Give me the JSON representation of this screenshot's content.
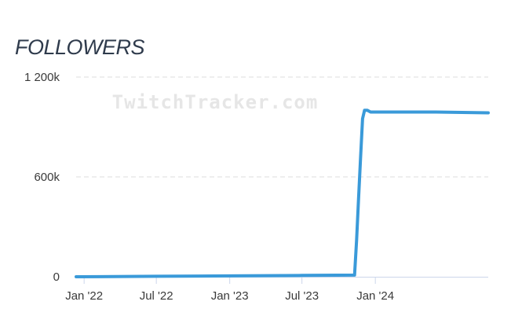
{
  "title": "FOLLOWERS",
  "watermark": "TwitchTracker.com",
  "colors": {
    "line": "#3a9ad9",
    "grid": "#dcdcdc",
    "axis": "#ccd6eb",
    "title": "#2f3b4c"
  },
  "chart_data": {
    "type": "line",
    "title": "FOLLOWERS",
    "xlabel": "",
    "ylabel": "",
    "ylim": [
      0,
      1200000
    ],
    "xlim": [
      "2021-12-12",
      "2024-10-10"
    ],
    "grid": true,
    "yticks": [
      {
        "value": 0,
        "label": "0"
      },
      {
        "value": 600000,
        "label": "600k"
      },
      {
        "value": 1200000,
        "label": "1 200k"
      }
    ],
    "xticks": [
      {
        "date": "2022-01-01",
        "label": "Jan '22"
      },
      {
        "date": "2022-07-01",
        "label": "Jul '22"
      },
      {
        "date": "2023-01-01",
        "label": "Jan '23"
      },
      {
        "date": "2023-07-01",
        "label": "Jul '23"
      },
      {
        "date": "2024-01-01",
        "label": "Jan '24"
      }
    ],
    "series": [
      {
        "x": [
          "2021-12-12",
          "2022-07-01",
          "2023-01-01",
          "2023-07-01",
          "2023-11-10",
          "2023-11-15",
          "2023-11-20",
          "2023-11-25",
          "2023-11-30",
          "2023-12-05",
          "2023-12-12",
          "2023-12-20",
          "2024-01-15",
          "2024-06-01",
          "2024-10-10"
        ],
        "y": [
          0,
          3000,
          5000,
          8000,
          10000,
          220000,
          470000,
          720000,
          950000,
          1000000,
          1000000,
          990000,
          990000,
          990000,
          985000
        ]
      }
    ]
  }
}
